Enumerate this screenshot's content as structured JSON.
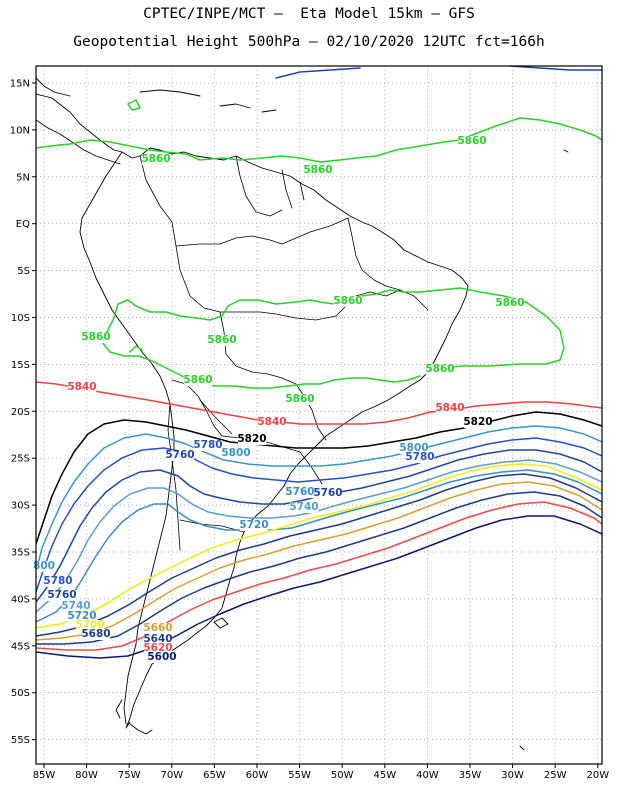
{
  "header": {
    "title_line1": "CPTEC/INPE/MCT –  Eta Model 15km – GFS",
    "title_line2": "Geopotential Height 500hPa – 02/10/2020 12UTC fct=166h"
  },
  "map": {
    "lat_ticks": [
      "15N",
      "10N",
      "5N",
      "EQ",
      "5S",
      "10S",
      "15S",
      "20S",
      "25S",
      "30S",
      "35S",
      "40S",
      "45S",
      "50S",
      "55S"
    ],
    "lon_ticks": [
      "85W",
      "80W",
      "75W",
      "70W",
      "65W",
      "60W",
      "55W",
      "50W",
      "45W",
      "40W",
      "35W",
      "30W",
      "25W",
      "20W"
    ],
    "colors": {
      "c5600": "#0a1a6e",
      "c5620": "#f04848",
      "c5640": "#1e3a8c",
      "c5660": "#d8a030",
      "c5700": "#f0f020",
      "c5720": "#3a8cc8",
      "c5740": "#5aa0c8",
      "c5760": "#1e46a0",
      "c5780": "#2850c8",
      "c5800": "#3a96c8",
      "c5820": "#000000",
      "c5840": "#f04040",
      "c5860": "#28d228",
      "coast": "#000000"
    },
    "contour_labels": [
      {
        "text": "5860",
        "color": "#28d228"
      },
      {
        "text": "5860",
        "color": "#28d228"
      },
      {
        "text": "5860",
        "color": "#28d228"
      },
      {
        "text": "5860",
        "color": "#28d228"
      },
      {
        "text": "5860",
        "color": "#28d228"
      },
      {
        "text": "5860",
        "color": "#28d228"
      },
      {
        "text": "5860",
        "color": "#28d228"
      },
      {
        "text": "5860",
        "color": "#28d228"
      },
      {
        "text": "5860",
        "color": "#28d228"
      },
      {
        "text": "5860",
        "color": "#28d228"
      },
      {
        "text": "5840",
        "color": "#f04040"
      },
      {
        "text": "5840",
        "color": "#f04040"
      },
      {
        "text": "5840",
        "color": "#f04040"
      },
      {
        "text": "5820",
        "color": "#000000"
      },
      {
        "text": "5820",
        "color": "#000000"
      },
      {
        "text": "5800",
        "color": "#3a96c8"
      },
      {
        "text": "5800",
        "color": "#3a96c8"
      },
      {
        "text": "5780",
        "color": "#2850c8"
      },
      {
        "text": "5760",
        "color": "#1e46a0"
      },
      {
        "text": "5780",
        "color": "#2850c8"
      },
      {
        "text": "5760",
        "color": "#3a8cc8"
      },
      {
        "text": "5760",
        "color": "#1e46a0"
      },
      {
        "text": "5740",
        "color": "#5aa0c8"
      },
      {
        "text": "5720",
        "color": "#3a8cc8"
      },
      {
        "text": "800",
        "color": "#3a96c8"
      },
      {
        "text": "5780",
        "color": "#2850c8"
      },
      {
        "text": "5760",
        "color": "#1e46a0"
      },
      {
        "text": "5740",
        "color": "#5aa0c8"
      },
      {
        "text": "5720",
        "color": "#3a8cc8"
      },
      {
        "text": "5700",
        "color": "#f0f020"
      },
      {
        "text": "5680",
        "color": "#1e3a8c"
      },
      {
        "text": "5660",
        "color": "#d8a030"
      },
      {
        "text": "5640",
        "color": "#1e3a8c"
      },
      {
        "text": "5620",
        "color": "#f04848"
      },
      {
        "text": "5600",
        "color": "#0a1a6e"
      }
    ]
  }
}
